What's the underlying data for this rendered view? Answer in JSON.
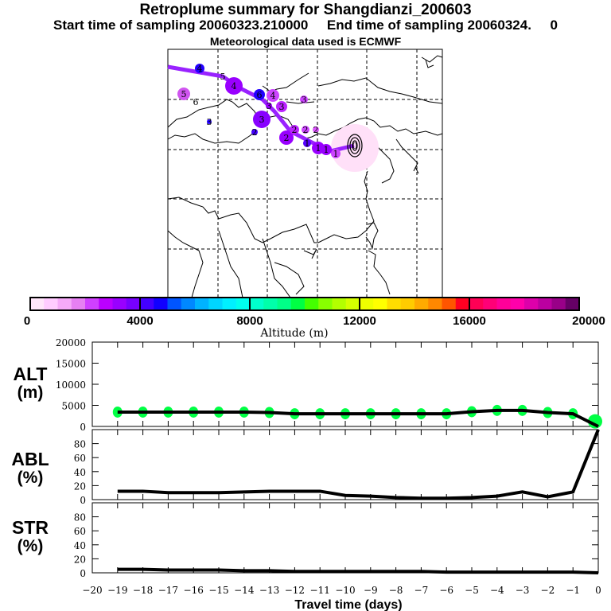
{
  "header": {
    "title": "Retroplume summary for Shangdianzi_200603",
    "sampling_line": "Start time of sampling 20060323.210000     End time of sampling 20060324.     0",
    "met_line": "Meteorological data used is ECMWF"
  },
  "colorbar": {
    "label": "Altitude (m)",
    "ticks": [
      "0",
      "4000",
      "8000",
      "12000",
      "16000",
      "20000"
    ],
    "range": [
      0,
      20000
    ],
    "colors": [
      "#ffe6fa",
      "#ffccff",
      "#f5aaf8",
      "#e680f2",
      "#d040ff",
      "#bb00ff",
      "#9900ff",
      "#7700ff",
      "#4400ff",
      "#1100ff",
      "#0055ff",
      "#0088ff",
      "#00b3ff",
      "#00d5ff",
      "#00f0ff",
      "#00ffee",
      "#00ffcc",
      "#00ffaa",
      "#00ff88",
      "#00ff44",
      "#44ff00",
      "#88ff00",
      "#b3ff00",
      "#d5ff00",
      "#eeff00",
      "#ffff00",
      "#ffdd00",
      "#ffcc00",
      "#ffaa00",
      "#ff8800",
      "#ff5500",
      "#ff0022",
      "#ff0055",
      "#ff0077",
      "#ff0099",
      "#ff00aa",
      "#dd00aa",
      "#bb00a0",
      "#990088",
      "#660066"
    ]
  },
  "map": {
    "description": "Retroplume back-trajectory over East Asia",
    "trajectory_color": "#9922ff",
    "receptor_plume_color": "#ffccf5",
    "markers": [
      {
        "label": "0",
        "color": "#ffe6fa"
      },
      {
        "label": "1",
        "color": "#cc44ff"
      },
      {
        "label": "1",
        "color": "#9900ff"
      },
      {
        "label": "1",
        "color": "#9900ff"
      },
      {
        "label": "1",
        "color": "#5500ff"
      },
      {
        "label": "2",
        "color": "#9900ff"
      },
      {
        "label": "2",
        "color": "#bb22ff"
      },
      {
        "label": "2",
        "color": "#cc44ff"
      },
      {
        "label": "2",
        "color": "#dd55ff"
      },
      {
        "label": "2",
        "color": "#4400ff"
      },
      {
        "label": "3",
        "color": "#8800ff"
      },
      {
        "label": "3",
        "color": "#bb22ff"
      },
      {
        "label": "3",
        "color": "#cc44ff"
      },
      {
        "label": "3",
        "color": "#2200ff"
      },
      {
        "label": "3",
        "color": "#9900ff"
      },
      {
        "label": "4",
        "color": "#cc44ff"
      },
      {
        "label": "4",
        "color": "#9900ff"
      },
      {
        "label": "4",
        "color": "#2200ff"
      },
      {
        "label": "5",
        "color": "#aa11ff"
      },
      {
        "label": "5",
        "color": "#d055f0"
      },
      {
        "label": "6",
        "color": "#2200ff"
      },
      {
        "label": "6",
        "color": "#ffffff"
      }
    ]
  },
  "chart_data": [
    {
      "type": "line",
      "title": "ALT",
      "ylabel": "ALT (m)",
      "xlabel": "Travel time (days)",
      "x": [
        -19,
        -18,
        -17,
        -16,
        -15,
        -14,
        -13,
        -12,
        -11,
        -10,
        -9,
        -8,
        -7,
        -6,
        -5,
        -4,
        -3,
        -2,
        -1,
        0
      ],
      "series": [
        {
          "name": "mean altitude",
          "values": [
            3400,
            3400,
            3400,
            3400,
            3400,
            3400,
            3300,
            3000,
            3000,
            3000,
            3000,
            3000,
            3000,
            3000,
            3500,
            3800,
            3800,
            3300,
            3000,
            0
          ]
        }
      ],
      "scatter_color": "#00ff44",
      "ylim": [
        0,
        20000
      ],
      "yticks": [
        "0",
        "5000",
        "10000",
        "15000",
        "20000"
      ],
      "xlim": [
        -20,
        0
      ]
    },
    {
      "type": "line",
      "title": "ABL",
      "ylabel": "ABL (%)",
      "x": [
        -19,
        -18,
        -17,
        -16,
        -15,
        -14,
        -13,
        -12,
        -11,
        -10,
        -9,
        -8,
        -7,
        -6,
        -5,
        -4,
        -3,
        -2,
        -1,
        0
      ],
      "series": [
        {
          "name": "fraction in boundary layer",
          "values": [
            12,
            12,
            10,
            10,
            10,
            11,
            12,
            12,
            12,
            6,
            5,
            3,
            2,
            2,
            3,
            5,
            11,
            4,
            11,
            100
          ]
        }
      ],
      "ylim": [
        0,
        100
      ],
      "yticks": [
        "0",
        "20",
        "40",
        "60",
        "80"
      ],
      "xlim": [
        -20,
        0
      ]
    },
    {
      "type": "line",
      "title": "STR",
      "ylabel": "STR (%)",
      "xlabel": "Travel time (days)",
      "x": [
        -19,
        -18,
        -17,
        -16,
        -15,
        -14,
        -13,
        -12,
        -11,
        -10,
        -9,
        -8,
        -7,
        -6,
        -5,
        -4,
        -3,
        -2,
        -1,
        0
      ],
      "series": [
        {
          "name": "fraction in stratosphere",
          "values": [
            5,
            5,
            4,
            4,
            4,
            3,
            3,
            2,
            2,
            2,
            2,
            2,
            2,
            1,
            1,
            1,
            1,
            1,
            1,
            0
          ]
        }
      ],
      "ylim": [
        0,
        100
      ],
      "yticks": [
        "0",
        "20",
        "40",
        "60",
        "80"
      ],
      "xticks": [
        "-20",
        "-19",
        "-18",
        "-17",
        "-16",
        "-15",
        "-14",
        "-13",
        "-12",
        "-11",
        "-10",
        "-9",
        "-8",
        "-7",
        "-6",
        "-5",
        "-4",
        "-3",
        "-2",
        "-1",
        "0"
      ],
      "xlim": [
        -20,
        0
      ]
    }
  ],
  "panels": {
    "alt_label_1": "ALT",
    "alt_label_2": "(m)",
    "abl_label_1": "ABL",
    "abl_label_2": "(%)",
    "str_label_1": "STR",
    "str_label_2": "(%)",
    "xlabel": "Travel time (days)"
  }
}
